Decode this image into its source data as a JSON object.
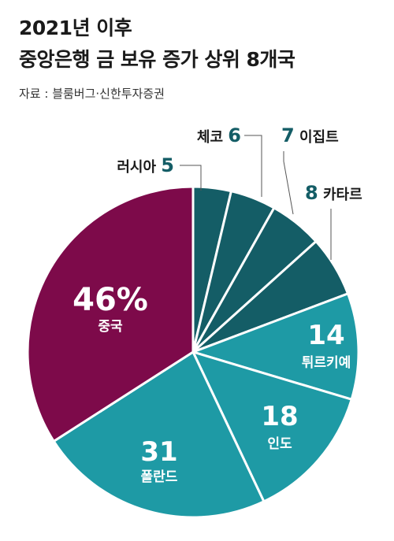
{
  "title_line1": "2021년 이후",
  "title_line2": "중앙은행 금 보유 증가 상위 8개국",
  "source": "자료 : 블룸버그·신한투자증권",
  "colors": {
    "china": "#7d0a4a",
    "teal_light": "#1e9aa5",
    "teal_dark": "#145d66",
    "label_dark": "#145d66"
  },
  "chart_data": {
    "type": "pie",
    "title": "2021년 이후 중앙은행 금 보유 증가 상위 8개국",
    "slices": [
      {
        "label": "중국",
        "value": 46,
        "display": "46%"
      },
      {
        "label": "폴란드",
        "value": 31,
        "display": "31"
      },
      {
        "label": "인도",
        "value": 18,
        "display": "18"
      },
      {
        "label": "튀르키예",
        "value": 14,
        "display": "14"
      },
      {
        "label": "카타르",
        "value": 8,
        "display": "8"
      },
      {
        "label": "이집트",
        "value": 7,
        "display": "7"
      },
      {
        "label": "체코",
        "value": 6,
        "display": "6"
      },
      {
        "label": "러시아",
        "value": 5,
        "display": "5"
      }
    ]
  }
}
